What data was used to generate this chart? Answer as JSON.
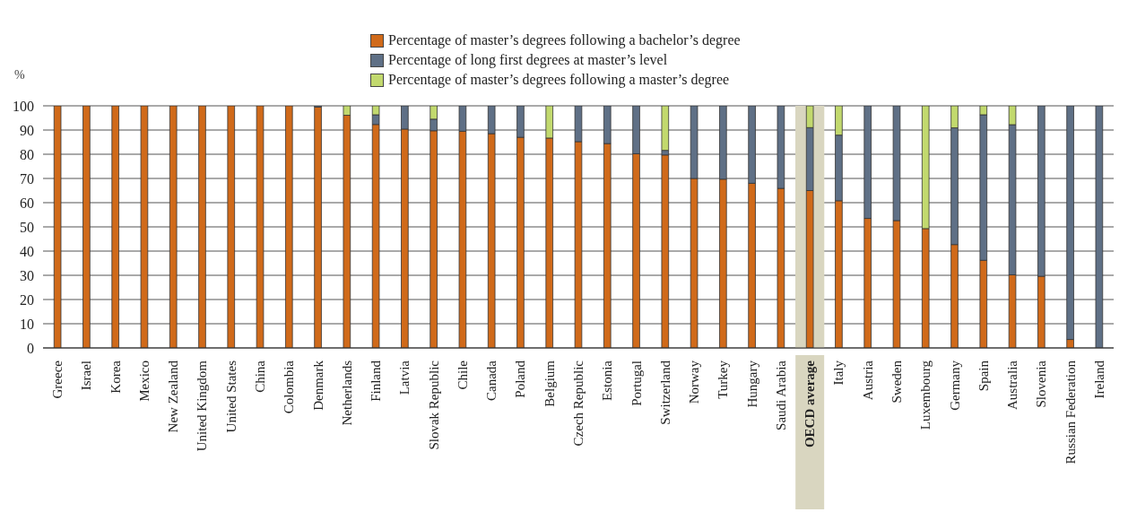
{
  "chart_data": {
    "type": "bar",
    "stacked": true,
    "ylabel": "%",
    "categories": [
      "Greece",
      "Israel",
      "Korea",
      "Mexico",
      "New Zealand",
      "United Kingdom",
      "United States",
      "China",
      "Colombia",
      "Denmark",
      "Netherlands",
      "Finland",
      "Latvia",
      "Slovak Republic",
      "Chile",
      "Canada",
      "Poland",
      "Belgium",
      "Czech Republic",
      "Estonia",
      "Portugal",
      "Switzerland",
      "Norway",
      "Turkey",
      "Hungary",
      "Saudi Arabia",
      "OECD average",
      "Italy",
      "Austria",
      "Sweden",
      "Luxembourg",
      "Germany",
      "Spain",
      "Australia",
      "Slovenia",
      "Russian Federation",
      "Ireland"
    ],
    "series": [
      {
        "name": "Percentage of master’s degrees following a bachelor’s degree",
        "color": "#d06a1a",
        "values": [
          100,
          100,
          100,
          100,
          100,
          100,
          100,
          100,
          100,
          99.5,
          96.1,
          92.3,
          90.4,
          89.7,
          89.5,
          88.5,
          87.0,
          86.7,
          85.2,
          84.4,
          80.2,
          79.7,
          70.0,
          69.7,
          68.0,
          65.9,
          65.0,
          60.8,
          53.5,
          52.6,
          49.3,
          42.7,
          36.2,
          30.2,
          29.6,
          3.5,
          0
        ]
      },
      {
        "name": "Percentage of long first degrees at master’s level",
        "color": "#5f7086",
        "values": [
          0,
          0,
          0,
          0,
          0,
          0,
          0,
          0,
          0,
          0.5,
          0,
          4.0,
          9.6,
          4.8,
          10.5,
          11.5,
          13.0,
          0,
          14.8,
          15.6,
          19.8,
          1.9,
          30.0,
          30.3,
          32.0,
          34.1,
          26.0,
          27.1,
          46.5,
          47.4,
          0,
          48.2,
          60.1,
          62.0,
          70.4,
          96.5,
          100
        ]
      },
      {
        "name": "Percentage of master’s degrees following a master’s degree",
        "color": "#c2d96e",
        "values": [
          0,
          0,
          0,
          0,
          0,
          0,
          0,
          0,
          0,
          0,
          3.9,
          3.7,
          0,
          5.5,
          0,
          0,
          0,
          13.3,
          0,
          0,
          0,
          18.4,
          0,
          0,
          0,
          0,
          9.0,
          12.1,
          0,
          0,
          50.7,
          9.1,
          3.7,
          7.8,
          0,
          0,
          0
        ]
      }
    ],
    "ylim": [
      0,
      100
    ],
    "yticks": [
      0,
      10,
      20,
      30,
      40,
      50,
      60,
      70,
      80,
      90,
      100
    ],
    "grid": "y",
    "legend": "top",
    "bands": [
      {
        "axis": "x",
        "from": "OECD average",
        "to": "OECD average",
        "color": "#d9d6c0"
      }
    ]
  }
}
